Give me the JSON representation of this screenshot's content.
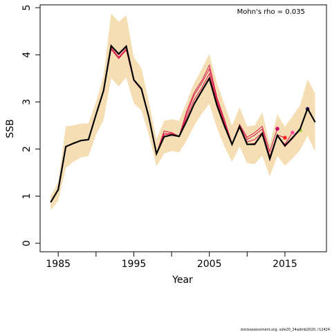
{
  "chart_data": {
    "type": "line",
    "ylabel": "SSB",
    "xlabel": "Year",
    "annotation": "Mohn's rho = 0.035",
    "footer": "stockassessment.org, sole20_24admb2020, r12424",
    "x": [
      1984,
      1985,
      1986,
      1987,
      1988,
      1989,
      1990,
      1991,
      1992,
      1993,
      1994,
      1995,
      1996,
      1997,
      1998,
      1999,
      2000,
      2001,
      2002,
      2003,
      2004,
      2005,
      2006,
      2007,
      2008,
      2009,
      2010,
      2011,
      2012,
      2013,
      2014,
      2015,
      2016,
      2017,
      2018,
      2019
    ],
    "band": {
      "color": "#f5deb3",
      "upper": [
        1.0,
        1.3,
        2.48,
        2.5,
        2.54,
        2.54,
        3.0,
        3.55,
        4.88,
        4.7,
        4.84,
        3.95,
        3.72,
        3.0,
        2.2,
        2.6,
        2.63,
        2.6,
        3.0,
        3.4,
        3.7,
        4.02,
        3.4,
        2.95,
        2.5,
        2.88,
        2.48,
        2.5,
        2.78,
        2.1,
        2.74,
        2.47,
        2.7,
        2.92,
        3.48,
        3.18
      ],
      "lower": [
        0.7,
        0.9,
        1.6,
        1.73,
        1.82,
        1.85,
        2.3,
        2.62,
        3.5,
        3.33,
        3.52,
        2.97,
        2.82,
        2.3,
        1.63,
        1.9,
        1.96,
        1.93,
        2.18,
        2.5,
        2.75,
        2.96,
        2.45,
        2.05,
        1.73,
        2.05,
        1.7,
        1.68,
        1.86,
        1.42,
        1.85,
        1.65,
        1.8,
        1.98,
        2.28,
        1.95
      ]
    },
    "series": [
      {
        "color": "#c8006e",
        "marker": "last",
        "values": [
          0.87,
          1.14,
          2.05,
          2.12,
          2.18,
          2.2,
          2.73,
          3.24,
          4.12,
          3.92,
          4.1,
          3.45,
          3.26,
          2.66,
          1.9,
          2.38,
          2.35,
          2.27,
          2.8,
          3.2,
          3.45,
          3.78,
          3.1,
          2.62,
          2.1,
          2.52,
          2.25,
          2.35,
          2.48,
          1.95,
          2.43,
          null,
          null,
          null,
          null,
          null
        ]
      },
      {
        "color": "#ff2020",
        "marker": "last",
        "values": [
          0.87,
          1.14,
          2.05,
          2.12,
          2.18,
          2.2,
          2.73,
          3.24,
          4.14,
          3.94,
          4.12,
          3.46,
          3.27,
          2.66,
          1.9,
          2.33,
          2.33,
          2.27,
          2.75,
          3.15,
          3.4,
          3.7,
          3.05,
          2.6,
          2.12,
          2.5,
          2.2,
          2.3,
          2.42,
          1.85,
          2.3,
          2.24,
          null,
          null,
          null,
          null
        ]
      },
      {
        "color": "#ff4fa0",
        "marker": "last",
        "values": [
          0.87,
          1.14,
          2.05,
          2.12,
          2.18,
          2.2,
          2.73,
          3.24,
          4.15,
          3.95,
          4.12,
          3.46,
          3.27,
          2.67,
          1.9,
          2.3,
          2.32,
          2.27,
          2.68,
          3.05,
          3.3,
          3.6,
          3.0,
          2.55,
          2.12,
          2.45,
          2.15,
          2.2,
          2.35,
          1.82,
          2.27,
          2.1,
          2.35,
          null,
          null,
          null
        ]
      },
      {
        "color": "#9acd32",
        "marker": "last",
        "values": [
          0.87,
          1.14,
          2.05,
          2.12,
          2.18,
          2.2,
          2.73,
          3.24,
          4.18,
          4.0,
          4.16,
          3.47,
          3.28,
          2.67,
          1.9,
          2.27,
          2.3,
          2.27,
          2.62,
          2.98,
          3.25,
          3.52,
          2.95,
          2.5,
          2.1,
          2.47,
          2.1,
          2.12,
          2.33,
          1.8,
          2.28,
          2.05,
          2.22,
          2.4,
          null,
          null
        ]
      },
      {
        "color": "#4b0082",
        "marker": "last",
        "values": [
          0.87,
          1.14,
          2.05,
          2.12,
          2.18,
          2.2,
          2.73,
          3.24,
          4.19,
          4.02,
          4.18,
          3.47,
          3.28,
          2.67,
          1.9,
          2.26,
          2.3,
          2.27,
          2.6,
          2.96,
          3.23,
          3.5,
          2.93,
          2.49,
          2.1,
          2.48,
          2.1,
          2.1,
          2.33,
          1.79,
          2.29,
          2.07,
          2.24,
          2.43,
          2.85,
          null
        ]
      },
      {
        "color": "#000000",
        "values": [
          0.87,
          1.14,
          2.05,
          2.12,
          2.18,
          2.2,
          2.73,
          3.24,
          4.19,
          4.02,
          4.18,
          3.47,
          3.28,
          2.67,
          1.9,
          2.26,
          2.3,
          2.27,
          2.6,
          2.96,
          3.23,
          3.5,
          2.93,
          2.49,
          2.1,
          2.48,
          2.1,
          2.1,
          2.33,
          1.79,
          2.29,
          2.07,
          2.24,
          2.42,
          2.86,
          2.57
        ]
      }
    ],
    "xlim": [
      1982.6,
      2020.5
    ],
    "ylim": [
      -0.18,
      5.06
    ],
    "xticks": [
      1985,
      {
        "value": 1990,
        "label": null
      },
      1995,
      {
        "value": 2000,
        "label": null
      },
      2005,
      {
        "value": 2010,
        "label": null
      },
      2015
    ],
    "yticks": [
      0,
      1,
      2,
      3,
      4,
      5
    ]
  }
}
